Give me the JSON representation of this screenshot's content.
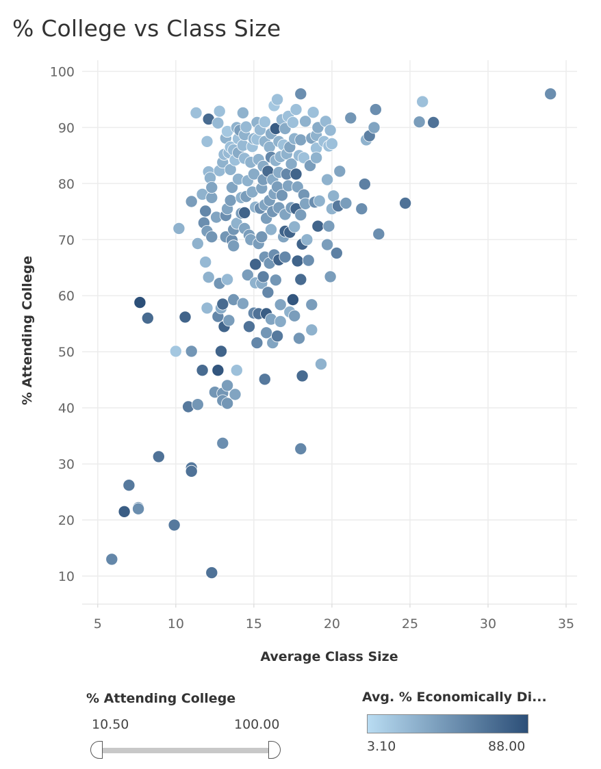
{
  "title": "% College vs Class Size",
  "chart_data": {
    "type": "scatter",
    "title": "% College vs Class Size",
    "xlabel": "Average Class Size",
    "ylabel": "% Attending College",
    "xlim": [
      4,
      35.7
    ],
    "ylim": [
      5,
      102
    ],
    "xticks": [
      5,
      10,
      15,
      20,
      25,
      30,
      35
    ],
    "yticks": [
      10,
      20,
      30,
      40,
      50,
      60,
      70,
      80,
      90,
      100
    ],
    "grid": true,
    "color_encoding": "Avg. % Economically Disadvantaged",
    "color_range": [
      "#b9dcf2",
      "#2c4f78"
    ],
    "points": [
      [
        5.9,
        13,
        0.6
      ],
      [
        6.7,
        21.5,
        0.9
      ],
      [
        7.0,
        26.2,
        0.7
      ],
      [
        7.6,
        22.2,
        0.5
      ],
      [
        7.6,
        22.0,
        0.55
      ],
      [
        7.7,
        58.8,
        1.0
      ],
      [
        8.2,
        56,
        0.8
      ],
      [
        8.9,
        31.3,
        0.75
      ],
      [
        9.9,
        19.1,
        0.7
      ],
      [
        10.0,
        50.1,
        0.15
      ],
      [
        10.2,
        72,
        0.3
      ],
      [
        10.6,
        56.2,
        0.85
      ],
      [
        10.8,
        40.2,
        0.7
      ],
      [
        11.0,
        50.1,
        0.5
      ],
      [
        11.0,
        76.8,
        0.45
      ],
      [
        11.0,
        29.3,
        0.7
      ],
      [
        11.0,
        28.7,
        0.75
      ],
      [
        11.3,
        92.6,
        0.2
      ],
      [
        11.4,
        40.6,
        0.5
      ],
      [
        11.4,
        69.3,
        0.3
      ],
      [
        11.7,
        46.7,
        0.8
      ],
      [
        11.7,
        78.1,
        0.3
      ],
      [
        11.8,
        73,
        0.55
      ],
      [
        11.9,
        66,
        0.25
      ],
      [
        11.9,
        75.1,
        0.6
      ],
      [
        12.0,
        71.5,
        0.45
      ],
      [
        12.0,
        57.8,
        0.25
      ],
      [
        12.0,
        87.5,
        0.2
      ],
      [
        12.1,
        91.5,
        0.8
      ],
      [
        12.1,
        82.1,
        0.25
      ],
      [
        12.1,
        63.3,
        0.3
      ],
      [
        12.2,
        81.0,
        0.3
      ],
      [
        12.3,
        10.6,
        0.75
      ],
      [
        12.3,
        77.5,
        0.4
      ],
      [
        12.3,
        70.5,
        0.5
      ],
      [
        12.3,
        79.3,
        0.4
      ],
      [
        12.5,
        42.8,
        0.5
      ],
      [
        12.6,
        74,
        0.4
      ],
      [
        12.7,
        56.3,
        0.6
      ],
      [
        12.7,
        46.7,
        0.95
      ],
      [
        12.7,
        90.8,
        0.25
      ],
      [
        12.8,
        92.9,
        0.2
      ],
      [
        12.8,
        62.2,
        0.5
      ],
      [
        12.8,
        82.3,
        0.25
      ],
      [
        12.9,
        50.1,
        0.85
      ],
      [
        12.9,
        57.8,
        0.35
      ],
      [
        13.0,
        83.8,
        0.3
      ],
      [
        13.0,
        42.6,
        0.5
      ],
      [
        13.0,
        41.3,
        0.5
      ],
      [
        13.0,
        58.5,
        0.8
      ],
      [
        13.0,
        33.7,
        0.55
      ],
      [
        13.1,
        54.5,
        0.85
      ],
      [
        13.1,
        85.2,
        0.25
      ],
      [
        13.2,
        88.1,
        0.3
      ],
      [
        13.2,
        74.3,
        0.55
      ],
      [
        13.2,
        70.5,
        0.5
      ],
      [
        13.3,
        62.9,
        0.25
      ],
      [
        13.3,
        89.3,
        0.15
      ],
      [
        13.3,
        75.5,
        0.4
      ],
      [
        13.3,
        40.8,
        0.5
      ],
      [
        13.3,
        44.0,
        0.45
      ],
      [
        13.4,
        55.6,
        0.45
      ],
      [
        13.4,
        85.5,
        0.25
      ],
      [
        13.5,
        82.5,
        0.3
      ],
      [
        13.5,
        86.5,
        0.2
      ],
      [
        13.5,
        77,
        0.45
      ],
      [
        13.6,
        79.3,
        0.4
      ],
      [
        13.6,
        69.9,
        0.55
      ],
      [
        13.7,
        86,
        0.25
      ],
      [
        13.7,
        71.8,
        0.5
      ],
      [
        13.7,
        59.3,
        0.5
      ],
      [
        13.7,
        68.9,
        0.45
      ],
      [
        13.8,
        42.4,
        0.4
      ],
      [
        13.8,
        84.2,
        0.2
      ],
      [
        13.9,
        46.7,
        0.2
      ],
      [
        13.9,
        90.0,
        0.3
      ],
      [
        13.9,
        72.9,
        0.3
      ],
      [
        14.0,
        88.0,
        0.2
      ],
      [
        14.0,
        80.8,
        0.3
      ],
      [
        14.0,
        85.5,
        0.35
      ],
      [
        14.1,
        89.5,
        0.45
      ],
      [
        14.2,
        74.7,
        0.45
      ],
      [
        14.2,
        77.5,
        0.3
      ],
      [
        14.3,
        92.6,
        0.3
      ],
      [
        14.3,
        86.8,
        0.25
      ],
      [
        14.3,
        58.6,
        0.4
      ],
      [
        14.4,
        88.7,
        0.3
      ],
      [
        14.4,
        84.5,
        0.25
      ],
      [
        14.4,
        74.8,
        0.85
      ],
      [
        14.4,
        72.0,
        0.4
      ],
      [
        14.5,
        77.7,
        0.45
      ],
      [
        14.5,
        90.1,
        0.25
      ],
      [
        14.6,
        80.5,
        0.3
      ],
      [
        14.6,
        63.7,
        0.45
      ],
      [
        14.7,
        54.5,
        0.75
      ],
      [
        14.7,
        70.8,
        0.45
      ],
      [
        14.8,
        83.8,
        0.3
      ],
      [
        14.8,
        70.0,
        0.4
      ],
      [
        14.9,
        86.6,
        0.2
      ],
      [
        14.9,
        78.5,
        0.35
      ],
      [
        15.0,
        56.9,
        0.6
      ],
      [
        15.0,
        81.7,
        0.35
      ],
      [
        15.0,
        88.0,
        0.3
      ],
      [
        15.1,
        75.8,
        0.3
      ],
      [
        15.1,
        65.6,
        0.85
      ],
      [
        15.1,
        62.3,
        0.3
      ],
      [
        15.2,
        51.6,
        0.6
      ],
      [
        15.2,
        87.9,
        0.2
      ],
      [
        15.2,
        90.9,
        0.3
      ],
      [
        15.3,
        69.3,
        0.45
      ],
      [
        15.3,
        84.3,
        0.3
      ],
      [
        15.3,
        56.8,
        0.75
      ],
      [
        15.4,
        75.6,
        0.55
      ],
      [
        15.4,
        89.6,
        0.25
      ],
      [
        15.5,
        62.2,
        0.35
      ],
      [
        15.5,
        79.2,
        0.4
      ],
      [
        15.5,
        70.5,
        0.5
      ],
      [
        15.6,
        80.7,
        0.45
      ],
      [
        15.6,
        63.4,
        0.65
      ],
      [
        15.6,
        83.1,
        0.35
      ],
      [
        15.7,
        91.0,
        0.2
      ],
      [
        15.7,
        76.2,
        0.4
      ],
      [
        15.7,
        66.9,
        0.5
      ],
      [
        15.7,
        45.1,
        0.7
      ],
      [
        15.7,
        87.5,
        0.3
      ],
      [
        15.8,
        53.4,
        0.5
      ],
      [
        15.8,
        56.8,
        0.9
      ],
      [
        15.8,
        73.8,
        0.45
      ],
      [
        15.9,
        82.2,
        0.8
      ],
      [
        15.9,
        60.6,
        0.6
      ],
      [
        16.0,
        65.8,
        0.5
      ],
      [
        16.0,
        86.5,
        0.3
      ],
      [
        16.0,
        77.0,
        0.45
      ],
      [
        16.1,
        84.7,
        0.6
      ],
      [
        16.1,
        88.9,
        0.35
      ],
      [
        16.1,
        71.8,
        0.3
      ],
      [
        16.1,
        55.8,
        0.4
      ],
      [
        16.2,
        75.0,
        0.5
      ],
      [
        16.2,
        51.6,
        0.4
      ],
      [
        16.2,
        80.7,
        0.35
      ],
      [
        16.3,
        93.9,
        0.15
      ],
      [
        16.3,
        78.2,
        0.4
      ],
      [
        16.3,
        67.3,
        0.55
      ],
      [
        16.4,
        89.8,
        0.9
      ],
      [
        16.4,
        84.1,
        0.3
      ],
      [
        16.4,
        62.8,
        0.5
      ],
      [
        16.5,
        95.0,
        0.2
      ],
      [
        16.5,
        79.4,
        0.45
      ],
      [
        16.5,
        52.8,
        0.7
      ],
      [
        16.6,
        87.5,
        0.3
      ],
      [
        16.6,
        66.4,
        0.85
      ],
      [
        16.6,
        75.7,
        0.45
      ],
      [
        16.6,
        82.0,
        0.35
      ],
      [
        16.7,
        55.4,
        0.35
      ],
      [
        16.7,
        58.4,
        0.4
      ],
      [
        16.7,
        84.8,
        0.3
      ],
      [
        16.8,
        91.4,
        0.25
      ],
      [
        16.8,
        77.9,
        0.5
      ],
      [
        16.9,
        70.5,
        0.4
      ],
      [
        16.9,
        86.9,
        0.2
      ],
      [
        17.0,
        71.5,
        0.85
      ],
      [
        17.0,
        74.5,
        0.4
      ],
      [
        17.0,
        89.8,
        0.35
      ],
      [
        17.0,
        66.9,
        0.6
      ],
      [
        17.1,
        81.7,
        0.6
      ],
      [
        17.1,
        85.3,
        0.3
      ],
      [
        17.2,
        79.6,
        0.4
      ],
      [
        17.2,
        92.0,
        0.2
      ],
      [
        17.3,
        71.3,
        0.85
      ],
      [
        17.3,
        86.5,
        0.4
      ],
      [
        17.3,
        57.1,
        0.3
      ],
      [
        17.4,
        75.7,
        0.45
      ],
      [
        17.4,
        83.5,
        0.35
      ],
      [
        17.5,
        59.3,
        0.95
      ],
      [
        17.5,
        90.9,
        0.2
      ],
      [
        17.6,
        56.4,
        0.45
      ],
      [
        17.6,
        88.0,
        0.3
      ],
      [
        17.6,
        72.3,
        0.3
      ],
      [
        17.7,
        93.2,
        0.2
      ],
      [
        17.7,
        75.5,
        0.85
      ],
      [
        17.7,
        81.7,
        0.85
      ],
      [
        17.8,
        66.2,
        0.85
      ],
      [
        17.8,
        79.4,
        0.4
      ],
      [
        17.9,
        52.4,
        0.5
      ],
      [
        17.9,
        85.0,
        0.25
      ],
      [
        18.0,
        62.9,
        0.8
      ],
      [
        18.0,
        96.0,
        0.55
      ],
      [
        18.0,
        74.4,
        0.45
      ],
      [
        18.0,
        87.8,
        0.4
      ],
      [
        18.0,
        32.7,
        0.6
      ],
      [
        18.1,
        69.2,
        0.85
      ],
      [
        18.1,
        45.7,
        0.8
      ],
      [
        18.2,
        78.0,
        0.5
      ],
      [
        18.2,
        84.6,
        0.2
      ],
      [
        18.3,
        91.1,
        0.3
      ],
      [
        18.3,
        76.4,
        0.4
      ],
      [
        18.4,
        70.0,
        0.3
      ],
      [
        18.5,
        66.3,
        0.55
      ],
      [
        18.6,
        83.2,
        0.45
      ],
      [
        18.7,
        58.4,
        0.45
      ],
      [
        18.7,
        53.9,
        0.3
      ],
      [
        18.7,
        88.1,
        0.4
      ],
      [
        18.8,
        92.7,
        0.2
      ],
      [
        18.9,
        76.7,
        0.55
      ],
      [
        19.0,
        88.6,
        0.3
      ],
      [
        19.0,
        86.3,
        0.2
      ],
      [
        19.0,
        84.6,
        0.3
      ],
      [
        19.1,
        72.4,
        0.85
      ],
      [
        19.1,
        90.0,
        0.35
      ],
      [
        19.2,
        76.9,
        0.3
      ],
      [
        19.3,
        47.8,
        0.3
      ],
      [
        19.5,
        87.5,
        0.2
      ],
      [
        19.6,
        91.1,
        0.25
      ],
      [
        19.7,
        69.1,
        0.45
      ],
      [
        19.7,
        80.7,
        0.3
      ],
      [
        19.8,
        72.4,
        0.45
      ],
      [
        19.8,
        86.7,
        0.2
      ],
      [
        19.9,
        89.5,
        0.25
      ],
      [
        19.9,
        63.4,
        0.45
      ],
      [
        20.0,
        75.5,
        0.3
      ],
      [
        20.0,
        87.1,
        0.2
      ],
      [
        20.1,
        77.8,
        0.3
      ],
      [
        20.3,
        67.6,
        0.65
      ],
      [
        20.4,
        76.0,
        0.7
      ],
      [
        20.5,
        82.2,
        0.4
      ],
      [
        20.9,
        76.5,
        0.45
      ],
      [
        21.2,
        91.7,
        0.5
      ],
      [
        21.9,
        75.5,
        0.55
      ],
      [
        22.1,
        79.9,
        0.65
      ],
      [
        22.2,
        87.8,
        0.3
      ],
      [
        22.4,
        88.5,
        0.65
      ],
      [
        22.7,
        90.0,
        0.4
      ],
      [
        22.8,
        93.2,
        0.55
      ],
      [
        23.0,
        71.0,
        0.55
      ],
      [
        24.7,
        76.5,
        0.75
      ],
      [
        25.6,
        91.0,
        0.45
      ],
      [
        25.8,
        94.6,
        0.2
      ],
      [
        26.5,
        90.9,
        0.75
      ],
      [
        34.0,
        96.0,
        0.55
      ]
    ]
  },
  "legend_slider": {
    "title": "% Attending College",
    "min_label": "10.50",
    "max_label": "100.00",
    "low_value": 10.5,
    "high_value": 100.0
  },
  "legend_color": {
    "title": "Avg. % Economically Di...",
    "min_label": "3.10",
    "max_label": "88.00",
    "color_low": "#b9dcf2",
    "color_high": "#2c4f78"
  }
}
